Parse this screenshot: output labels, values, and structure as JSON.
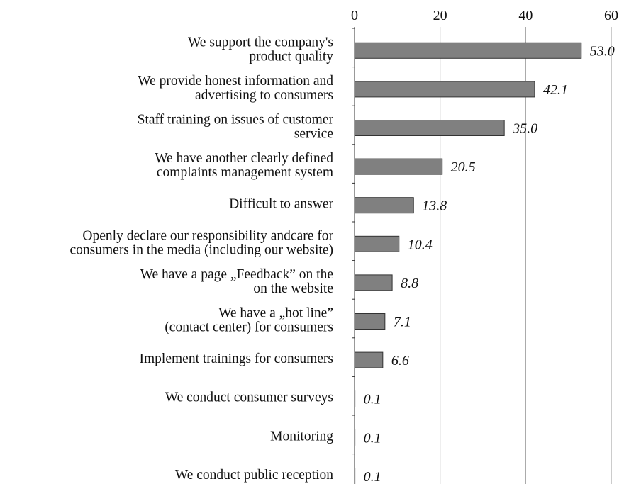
{
  "chart_data": {
    "type": "bar",
    "orientation": "horizontal",
    "x_axis_position": "top",
    "xlim": [
      0,
      60
    ],
    "xticks": [
      0,
      20,
      40,
      60
    ],
    "grid": true,
    "bar_color": "#808080",
    "categories": [
      [
        "We support the company's",
        "product quality"
      ],
      [
        "We provide honest information and",
        "advertising to consumers"
      ],
      [
        "Staff training on issues of customer",
        "service"
      ],
      [
        "We have another clearly defined",
        "complaints management system"
      ],
      [
        "Difficult to answer"
      ],
      [
        "Openly declare our responsibility andcare for",
        "consumers in the media (including our website)"
      ],
      [
        "We have a page „Feedback” on the",
        "on the website"
      ],
      [
        "We have a „hot line”",
        "(contact center) for consumers"
      ],
      [
        "Implement trainings for consumers"
      ],
      [
        "We conduct consumer surveys"
      ],
      [
        "Monitoring"
      ],
      [
        "We conduct public reception"
      ]
    ],
    "values": [
      53.0,
      42.1,
      35.0,
      20.5,
      13.8,
      10.4,
      8.8,
      7.1,
      6.6,
      0.1,
      0.1,
      0.1
    ],
    "value_labels": [
      "53.0",
      "42.1",
      "35.0",
      "20.5",
      "13.8",
      "10.4",
      "8.8",
      "7.1",
      "6.6",
      "0.1",
      "0.1",
      "0.1"
    ]
  }
}
